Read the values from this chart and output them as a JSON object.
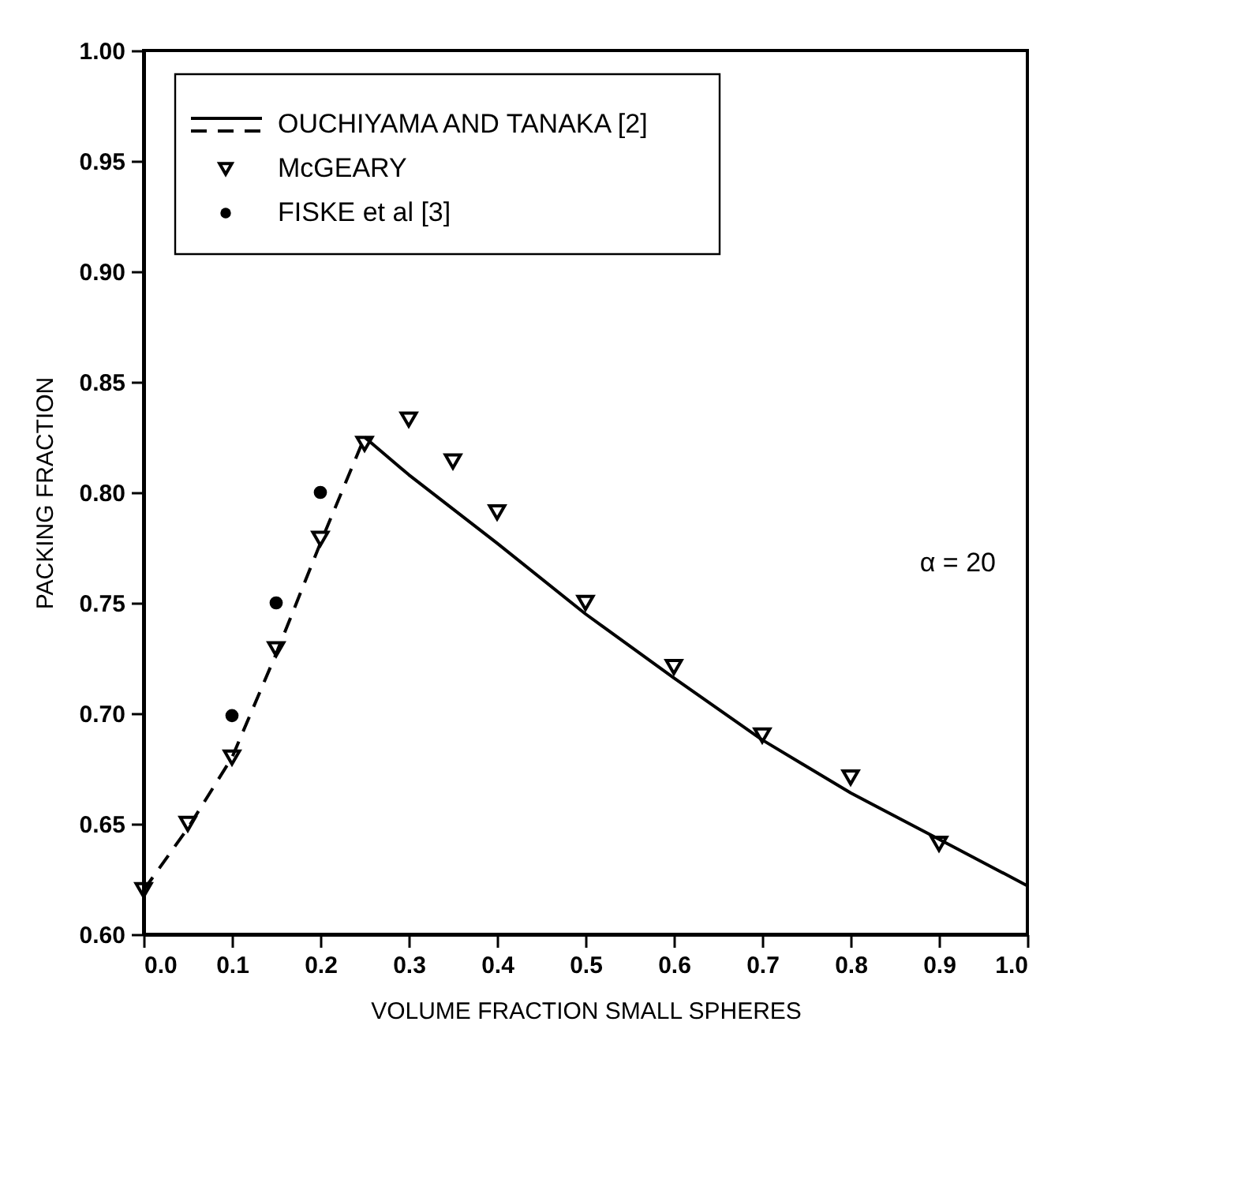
{
  "chart_data": {
    "type": "scatter",
    "xlabel": "VOLUME FRACTION SMALL SPHERES",
    "ylabel": "PACKING FRACTION",
    "xlim": [
      0.0,
      1.0
    ],
    "ylim": [
      0.6,
      1.0
    ],
    "xticks": [
      {
        "value": 0,
        "label": "0.0"
      },
      0.1,
      0.2,
      0.3,
      0.4,
      0.5,
      0.6,
      0.7,
      0.8,
      0.9,
      {
        "value": 1,
        "label": "1.0"
      }
    ],
    "yticks": [
      {
        "value": 0.6,
        "label": "0.60"
      },
      0.65,
      {
        "value": 0.7,
        "label": "0.70"
      },
      0.75,
      {
        "value": 0.8,
        "label": "0.80"
      },
      0.85,
      {
        "value": 0.9,
        "label": "0.90"
      },
      0.95,
      {
        "value": 1.0,
        "label": "1.00"
      }
    ],
    "grid": false,
    "legend": "top left",
    "annotations": [
      "α = 20"
    ],
    "series": [
      {
        "name": "OUCHIYAMA AND TANAKA [2]",
        "type": "line",
        "line_style": "solid",
        "marker": "none",
        "color": "#000000",
        "x": [
          0.25,
          0.3,
          0.4,
          0.5,
          0.6,
          0.7,
          0.8,
          0.9,
          1.0
        ],
        "values": [
          0.825,
          0.808,
          0.777,
          0.745,
          0.716,
          0.688,
          0.664,
          0.643,
          0.622
        ]
      },
      {
        "type": "line",
        "line_style": "dashed",
        "marker": "none",
        "color": "#000000",
        "x": [
          0.0,
          0.05,
          0.1,
          0.15,
          0.2,
          0.25
        ],
        "values": [
          0.62,
          0.648,
          0.68,
          0.727,
          0.777,
          0.825
        ]
      },
      {
        "name": "McGEARY",
        "marker": "triangle",
        "color": "#000000",
        "x": [
          0.0,
          0.05,
          0.1,
          0.15,
          0.2,
          0.25,
          0.3,
          0.35,
          0.4,
          0.5,
          0.6,
          0.7,
          0.8,
          0.9
        ],
        "values": [
          0.62,
          0.65,
          0.68,
          0.729,
          0.779,
          0.822,
          0.833,
          0.814,
          0.791,
          0.75,
          0.721,
          0.69,
          0.671,
          0.641
        ]
      },
      {
        "name": "FISKE et al [3]",
        "marker": "circle",
        "color": "#000000",
        "x": [
          0.1,
          0.15,
          0.2
        ],
        "values": [
          0.699,
          0.75,
          0.8
        ]
      }
    ]
  }
}
